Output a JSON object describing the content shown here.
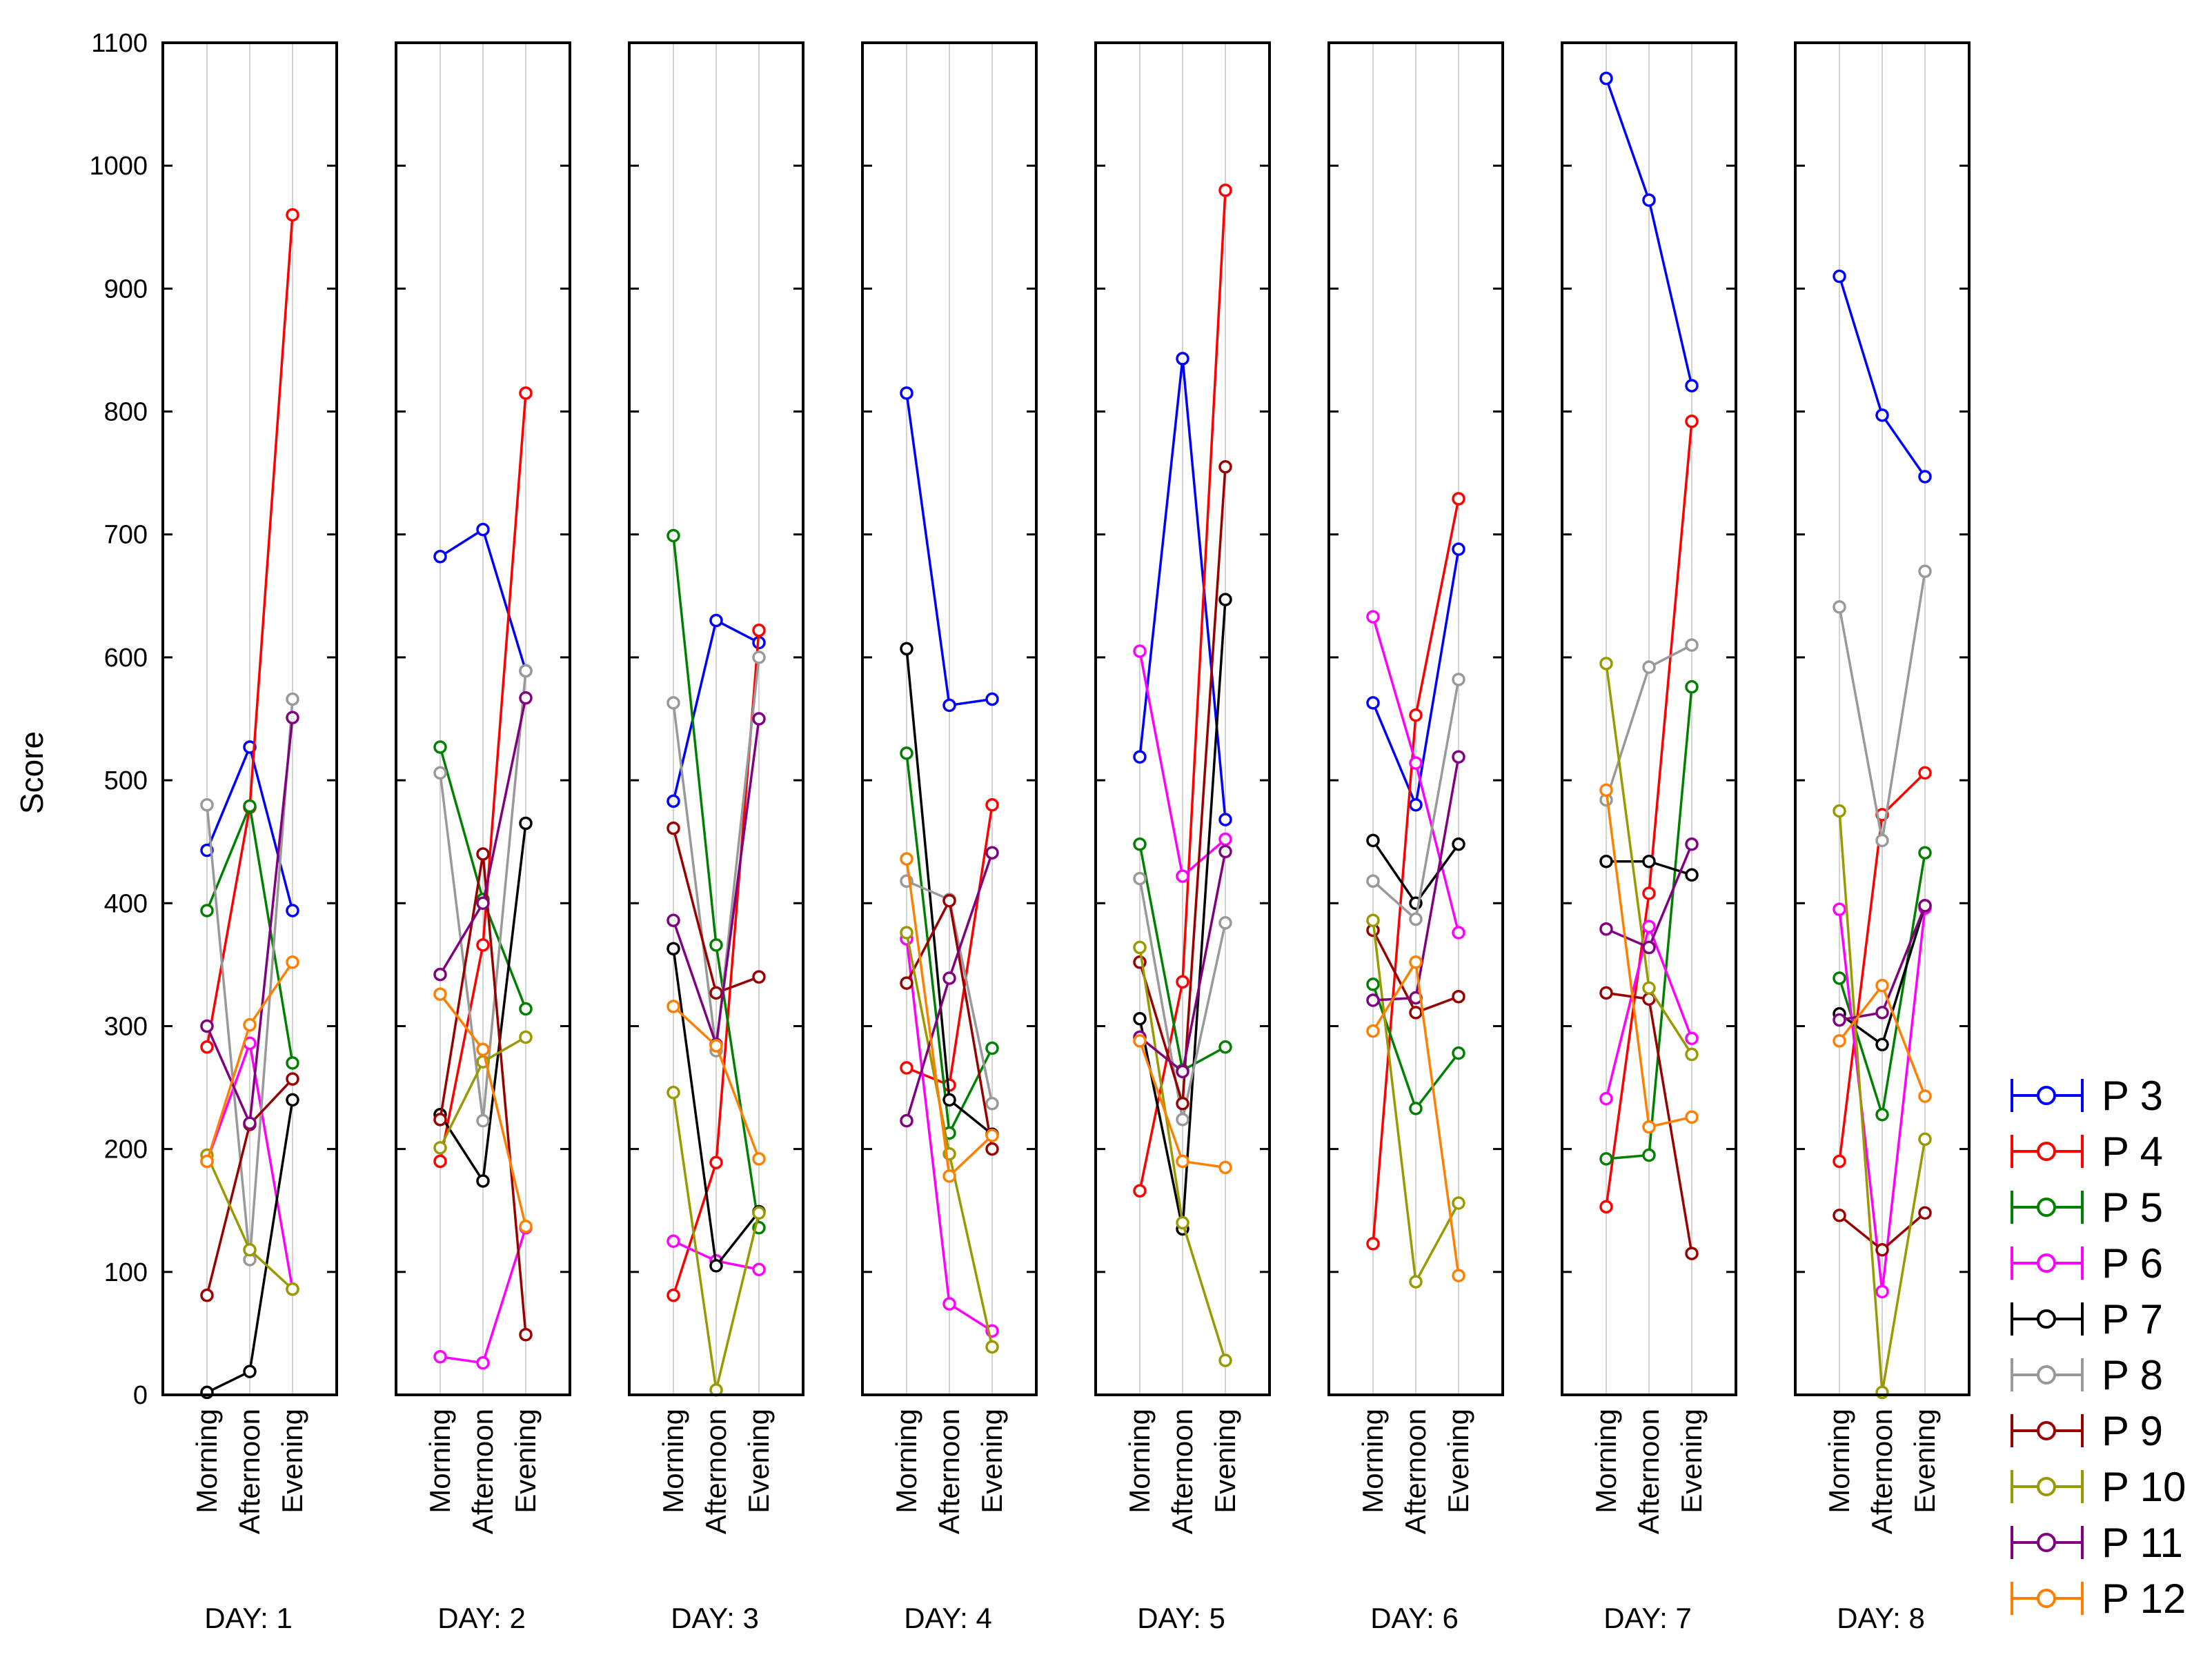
{
  "chart_data": {
    "type": "line",
    "ylabel": "Score",
    "ylim": [
      0,
      1100
    ],
    "yticks": [
      0,
      100,
      200,
      300,
      400,
      500,
      600,
      700,
      800,
      900,
      1000,
      1100
    ],
    "grid": true,
    "legend_position": "bottom-right",
    "categories": [
      "Morning",
      "Afternoon",
      "Evening"
    ],
    "panels": [
      {
        "label": "DAY: 1",
        "series": {
          "P 3": [
            443,
            527,
            394
          ],
          "P 4": [
            283,
            478,
            960
          ],
          "P 5": [
            394,
            479,
            270
          ],
          "P 6": [
            190,
            286,
            86
          ],
          "P 7": [
            2,
            19,
            240
          ],
          "P 8": [
            480,
            110,
            566
          ],
          "P 9": [
            81,
            220,
            257
          ],
          "P 10": [
            195,
            118,
            86
          ],
          "P 11": [
            300,
            221,
            551
          ],
          "P 12": [
            190,
            301,
            352
          ]
        }
      },
      {
        "label": "DAY: 2",
        "series": {
          "P 3": [
            682,
            704,
            589
          ],
          "P 4": [
            190,
            366,
            815
          ],
          "P 5": [
            527,
            403,
            314
          ],
          "P 6": [
            31,
            26,
            136
          ],
          "P 7": [
            228,
            174,
            465
          ],
          "P 8": [
            506,
            223,
            589
          ],
          "P 9": [
            224,
            440,
            49
          ],
          "P 10": [
            201,
            271,
            291
          ],
          "P 11": [
            342,
            400,
            567
          ],
          "P 12": [
            326,
            281,
            137
          ]
        }
      },
      {
        "label": "DAY: 3",
        "series": {
          "P 3": [
            483,
            630,
            612
          ],
          "P 4": [
            81,
            189,
            622
          ],
          "P 5": [
            699,
            366,
            136
          ],
          "P 6": [
            125,
            109,
            102
          ],
          "P 7": [
            363,
            105,
            149
          ],
          "P 8": [
            563,
            280,
            600
          ],
          "P 9": [
            461,
            327,
            340
          ],
          "P 10": [
            246,
            4,
            148
          ],
          "P 11": [
            386,
            285,
            550
          ],
          "P 12": [
            316,
            284,
            192
          ]
        }
      },
      {
        "label": "DAY: 4",
        "series": {
          "P 3": [
            815,
            561,
            566
          ],
          "P 4": [
            266,
            252,
            480
          ],
          "P 5": [
            522,
            213,
            282
          ],
          "P 6": [
            371,
            74,
            52
          ],
          "P 7": [
            607,
            240,
            212
          ],
          "P 8": [
            418,
            403,
            237
          ],
          "P 9": [
            335,
            402,
            200
          ],
          "P 10": [
            376,
            196,
            39
          ],
          "P 11": [
            223,
            339,
            441
          ],
          "P 12": [
            436,
            178,
            211
          ]
        }
      },
      {
        "label": "DAY: 5",
        "series": {
          "P 3": [
            519,
            843,
            468
          ],
          "P 4": [
            166,
            336,
            980
          ],
          "P 5": [
            448,
            264,
            283
          ],
          "P 6": [
            605,
            422,
            452
          ],
          "P 7": [
            306,
            135,
            647
          ],
          "P 8": [
            420,
            224,
            384
          ],
          "P 9": [
            352,
            237,
            755
          ],
          "P 10": [
            364,
            140,
            28
          ],
          "P 11": [
            291,
            263,
            442
          ],
          "P 12": [
            288,
            190,
            185
          ]
        }
      },
      {
        "label": "DAY: 6",
        "series": {
          "P 3": [
            563,
            480,
            688
          ],
          "P 4": [
            123,
            553,
            729
          ],
          "P 5": [
            334,
            233,
            278
          ],
          "P 6": [
            633,
            514,
            376
          ],
          "P 7": [
            451,
            400,
            448
          ],
          "P 8": [
            418,
            387,
            582
          ],
          "P 9": [
            378,
            311,
            324
          ],
          "P 10": [
            386,
            92,
            156
          ],
          "P 11": [
            321,
            323,
            519
          ],
          "P 12": [
            296,
            352,
            97
          ]
        }
      },
      {
        "label": "DAY: 7",
        "series": {
          "P 3": [
            1071,
            972,
            821
          ],
          "P 4": [
            153,
            408,
            792
          ],
          "P 5": [
            192,
            195,
            576
          ],
          "P 6": [
            241,
            381,
            290
          ],
          "P 7": [
            434,
            434,
            423
          ],
          "P 8": [
            484,
            592,
            610
          ],
          "P 9": [
            327,
            322,
            115
          ],
          "P 10": [
            595,
            331,
            277
          ],
          "P 11": [
            379,
            364,
            448
          ],
          "P 12": [
            492,
            218,
            226
          ]
        }
      },
      {
        "label": "DAY: 8",
        "series": {
          "P 3": [
            910,
            797,
            747
          ],
          "P 4": [
            190,
            472,
            506
          ],
          "P 5": [
            339,
            228,
            441
          ],
          "P 6": [
            395,
            84,
            396
          ],
          "P 7": [
            310,
            285,
            398
          ],
          "P 8": [
            641,
            451,
            670
          ],
          "P 9": [
            146,
            118,
            148
          ],
          "P 10": [
            475,
            2,
            208
          ],
          "P 11": [
            305,
            311,
            398
          ],
          "P 12": [
            288,
            333,
            243
          ]
        }
      }
    ],
    "legend": [
      {
        "name": "P 3",
        "color": "#0000ff"
      },
      {
        "name": "P 4",
        "color": "#ff0000"
      },
      {
        "name": "P 5",
        "color": "#008000"
      },
      {
        "name": "P 6",
        "color": "#ff00ff"
      },
      {
        "name": "P 7",
        "color": "#000000"
      },
      {
        "name": "P 8",
        "color": "#999999"
      },
      {
        "name": "P 9",
        "color": "#990000"
      },
      {
        "name": "P 10",
        "color": "#999900"
      },
      {
        "name": "P 11",
        "color": "#800080"
      },
      {
        "name": "P 12",
        "color": "#ff8000"
      }
    ]
  }
}
